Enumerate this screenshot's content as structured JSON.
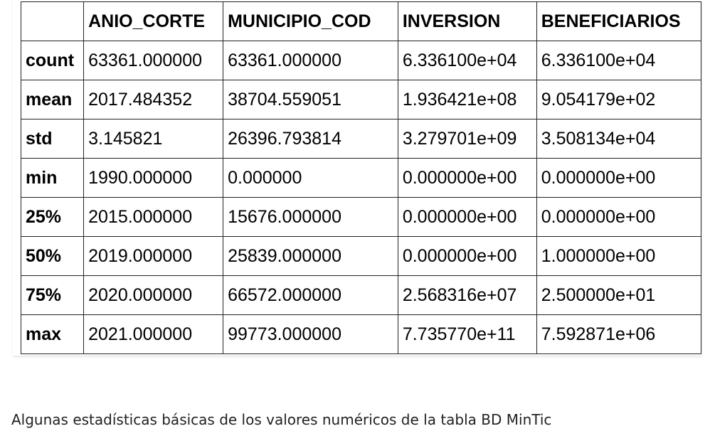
{
  "table": {
    "columns": [
      "",
      "ANIO_CORTE",
      "MUNICIPIO_COD",
      "INVERSION",
      "BENEFICIARIOS"
    ],
    "rows": [
      {
        "label": "count",
        "values": [
          "63361.000000",
          "63361.000000",
          "6.336100e+04",
          "6.336100e+04"
        ]
      },
      {
        "label": "mean",
        "values": [
          "2017.484352",
          "38704.559051",
          "1.936421e+08",
          "9.054179e+02"
        ]
      },
      {
        "label": "std",
        "values": [
          "3.145821",
          "26396.793814",
          "3.279701e+09",
          "3.508134e+04"
        ]
      },
      {
        "label": "min",
        "values": [
          "1990.000000",
          "0.000000",
          "0.000000e+00",
          "0.000000e+00"
        ]
      },
      {
        "label": "25%",
        "values": [
          "2015.000000",
          "15676.000000",
          "0.000000e+00",
          "0.000000e+00"
        ]
      },
      {
        "label": "50%",
        "values": [
          "2019.000000",
          "25839.000000",
          "0.000000e+00",
          "1.000000e+00"
        ]
      },
      {
        "label": "75%",
        "values": [
          "2020.000000",
          "66572.000000",
          "2.568316e+07",
          "2.500000e+01"
        ]
      },
      {
        "label": "max",
        "values": [
          "2021.000000",
          "99773.000000",
          "7.735770e+11",
          "7.592871e+06"
        ]
      }
    ]
  },
  "caption": "Algunas estadísticas básicas de los valores numéricos de la tabla BD MinTic"
}
